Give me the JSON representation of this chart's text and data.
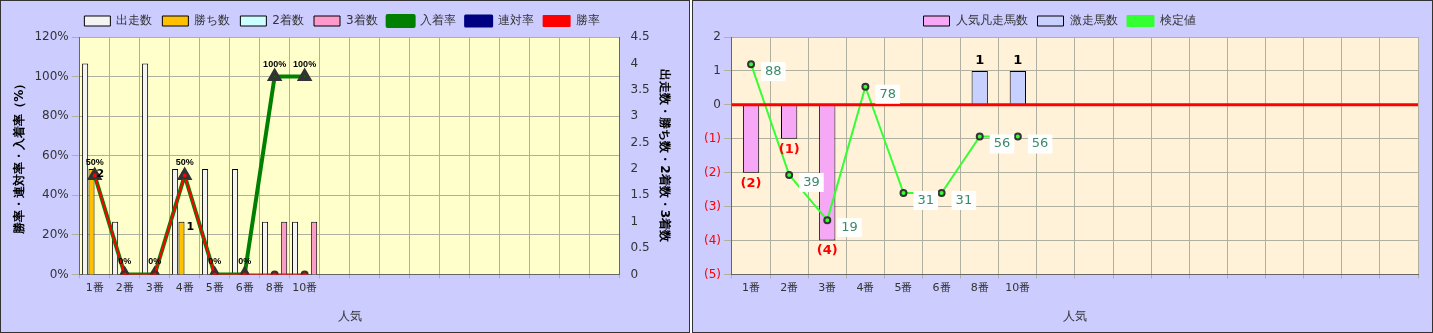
{
  "chart_data": [
    {
      "type": "bar",
      "xlabel": "人気",
      "ylabel": "勝率・連対率・入着率（%）",
      "y2label": "出走数・勝ち数・2着数・3着数",
      "categories": [
        "1番",
        "2番",
        "3番",
        "4番",
        "5番",
        "6番",
        "8番",
        "10番",
        null,
        null,
        null,
        null,
        null,
        null,
        null,
        null,
        null,
        null
      ],
      "series": [
        {
          "name": "出走数",
          "axis": "y2",
          "color": "#f4f4f4",
          "values": [
            4,
            1,
            4,
            2,
            2,
            2,
            1,
            1,
            null,
            null,
            null,
            null,
            null,
            null,
            null,
            null,
            null,
            null
          ]
        },
        {
          "name": "勝ち数",
          "axis": "y2",
          "color": "#ffc000",
          "values": [
            2,
            0,
            0,
            1,
            0,
            0,
            0,
            0,
            null,
            null,
            null,
            null,
            null,
            null,
            null,
            null,
            null,
            null
          ],
          "value_labels": [
            "2",
            null,
            null,
            "1",
            null,
            null,
            null,
            null,
            null,
            null,
            null,
            null,
            null,
            null,
            null,
            null,
            null,
            null
          ]
        },
        {
          "name": "2着数",
          "axis": "y2",
          "color": "#ccffff",
          "values": [
            0,
            0,
            0,
            0,
            0,
            0,
            0,
            0,
            null,
            null,
            null,
            null,
            null,
            null,
            null,
            null,
            null,
            null
          ]
        },
        {
          "name": "3着数",
          "axis": "y2",
          "color": "#ff99cc",
          "values": [
            0,
            0,
            0,
            0,
            0,
            0,
            1,
            1,
            null,
            null,
            null,
            null,
            null,
            null,
            null,
            null,
            null,
            null
          ]
        },
        {
          "name": "入着率",
          "type": "line",
          "axis": "y",
          "color": "#008000",
          "marker": "triangle",
          "values": [
            50,
            0,
            0,
            50,
            0,
            0,
            100,
            100,
            null,
            null,
            null,
            null,
            null,
            null,
            null,
            null,
            null,
            null
          ],
          "value_labels": [
            "50%",
            "0%",
            "0%",
            "50%",
            "0%",
            "0%",
            "100%",
            "100%",
            null,
            null,
            null,
            null,
            null,
            null,
            null,
            null,
            null,
            null
          ]
        },
        {
          "name": "連対率",
          "type": "line",
          "axis": "y",
          "color": "#000080",
          "marker": "diamond",
          "values": [
            null,
            null,
            null,
            null,
            null,
            null,
            null,
            null,
            null,
            null,
            null,
            null,
            null,
            null,
            null,
            null,
            null,
            null
          ]
        },
        {
          "name": "勝率",
          "type": "line",
          "axis": "y",
          "color": "#ff0000",
          "marker": "circle",
          "values": [
            50,
            0,
            0,
            50,
            0,
            0,
            0,
            0,
            null,
            null,
            null,
            null,
            null,
            null,
            null,
            null,
            null,
            null
          ]
        }
      ],
      "ylim": [
        0,
        120
      ],
      "yticks": [
        {
          "value": 0,
          "label": "0%"
        },
        {
          "value": 20,
          "label": "20%"
        },
        {
          "value": 40,
          "label": "40%"
        },
        {
          "value": 60,
          "label": "60%"
        },
        {
          "value": 80,
          "label": "80%"
        },
        {
          "value": 100,
          "label": "100%"
        },
        {
          "value": 120,
          "label": "120%"
        }
      ],
      "y2lim": [
        0,
        4.5
      ],
      "y2ticks": [
        0,
        0.5,
        1,
        1.5,
        2,
        2.5,
        3,
        3.5,
        4,
        4.5
      ],
      "grid": true,
      "legend": "top"
    },
    {
      "type": "bar",
      "xlabel": "人気",
      "categories": [
        "1番",
        "2番",
        "3番",
        "4番",
        "5番",
        "6番",
        "8番",
        "10番",
        null,
        null,
        null,
        null,
        null,
        null,
        null,
        null,
        null,
        null
      ],
      "series": [
        {
          "name": "人気凡走馬数",
          "axis": "y",
          "color": "#f6a8f6",
          "values": [
            -2,
            -1,
            -4,
            0,
            0,
            0,
            0,
            0,
            null,
            null,
            null,
            null,
            null,
            null,
            null,
            null,
            null,
            null
          ],
          "value_labels": [
            "(2)",
            "(1)",
            "(4)",
            null,
            null,
            null,
            null,
            null,
            null,
            null,
            null,
            null,
            null,
            null,
            null,
            null,
            null,
            null
          ]
        },
        {
          "name": "激走馬数",
          "axis": "y",
          "color": "#c8d0ff",
          "values": [
            0,
            0,
            0,
            0,
            0,
            0,
            1,
            1,
            null,
            null,
            null,
            null,
            null,
            null,
            null,
            null,
            null,
            null
          ],
          "value_labels": [
            null,
            null,
            null,
            null,
            null,
            null,
            "1",
            "1",
            null,
            null,
            null,
            null,
            null,
            null,
            null,
            null,
            null,
            null
          ]
        },
        {
          "name": "検定値",
          "type": "line",
          "axis": "y2",
          "color": "#33ff33",
          "marker": "circle",
          "values": [
            88,
            39,
            19,
            78,
            31,
            31,
            56,
            56,
            null,
            null,
            null,
            null,
            null,
            null,
            null,
            null,
            null,
            null
          ],
          "value_labels": [
            "88",
            "39",
            "19",
            "78",
            "31",
            "31",
            "56",
            "56",
            null,
            null,
            null,
            null,
            null,
            null,
            null,
            null,
            null,
            null
          ]
        }
      ],
      "ylim": [
        -5,
        2
      ],
      "yticks": [
        {
          "value": -5,
          "label": "(5)"
        },
        {
          "value": -4,
          "label": "(4)"
        },
        {
          "value": -3,
          "label": "(3)"
        },
        {
          "value": -2,
          "label": "(2)"
        },
        {
          "value": -1,
          "label": "(1)"
        },
        0,
        1,
        2
      ],
      "y2lim": [
        -5,
        100
      ],
      "ref_lines": [
        {
          "axis": "y",
          "value": 0,
          "color": "#ff0000"
        }
      ],
      "stacked": true,
      "grid": true,
      "legend": "top"
    }
  ]
}
